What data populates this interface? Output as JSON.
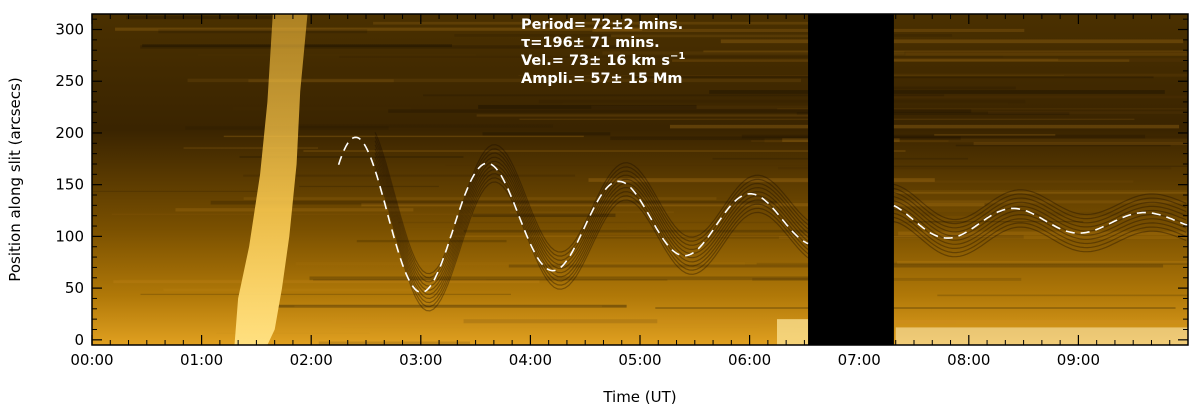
{
  "chart_data": {
    "type": "line",
    "title": "",
    "xlabel": "Time (UT)",
    "ylabel": "Position along slit (arcsecs)",
    "xlim": [
      "00:00",
      "10:00"
    ],
    "ylim": [
      -5,
      315
    ],
    "x_ticks": [
      "00:00",
      "01:00",
      "02:00",
      "03:00",
      "04:00",
      "05:00",
      "06:00",
      "07:00",
      "08:00",
      "09:00"
    ],
    "y_ticks": [
      0,
      50,
      100,
      150,
      200,
      250,
      300
    ],
    "annotations": {
      "period": "Period= 72±2 mins.",
      "tau": "τ=196± 71 mins.",
      "vel_main": "Vel.= 73± 16 km s",
      "vel_sup": "−1",
      "ampl": "Ampli.= 57± 15 Mm"
    },
    "data_gap": {
      "start": "06:32",
      "end": "07:19",
      "color": "#000000"
    },
    "background": "time-distance map (intensity), gold colormap",
    "colors": {
      "map_dark": "#1a1000",
      "map_mid": "#8a5a00",
      "map_bright": "#f0b020",
      "fit": "#ffffff"
    },
    "series": [
      {
        "style": "dashed",
        "color": "#ffffff",
        "model": {
          "t_start": "02:15",
          "t_end": "10:00",
          "y0": 114,
          "amplitude": 86,
          "period_min": 72,
          "tau_min": 196,
          "phase_min": 10
        }
      }
    ]
  }
}
